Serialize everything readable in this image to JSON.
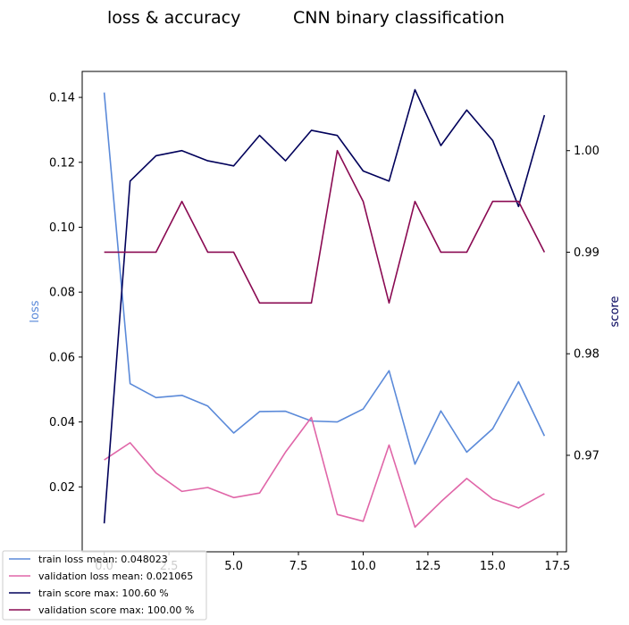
{
  "chart_data": {
    "type": "line",
    "title_left": "loss & accuracy",
    "title_right": "CNN binary classification",
    "xlabel": "",
    "ylabel_left": "loss",
    "ylabel_right": "score",
    "xlim": [
      -0.85,
      17.85
    ],
    "ylim_left": [
      0.0,
      0.148
    ],
    "ylim_right": [
      0.9605,
      1.0078
    ],
    "x_ticks": [
      "0.0",
      "2.5",
      "5.0",
      "7.5",
      "10.0",
      "12.5",
      "15.0",
      "17.5"
    ],
    "x_tick_values": [
      0.0,
      2.5,
      5.0,
      7.5,
      10.0,
      12.5,
      15.0,
      17.5
    ],
    "y_left_ticks": [
      "0.02",
      "0.04",
      "0.06",
      "0.08",
      "0.10",
      "0.12",
      "0.14"
    ],
    "y_left_tick_values": [
      0.02,
      0.04,
      0.06,
      0.08,
      0.1,
      0.12,
      0.14
    ],
    "y_right_ticks": [
      "0.97",
      "0.98",
      "0.99",
      "1.00"
    ],
    "y_right_tick_values": [
      0.97,
      0.98,
      0.99,
      1.0
    ],
    "x": [
      0,
      1,
      2,
      3,
      4,
      5,
      6,
      7,
      8,
      9,
      10,
      11,
      12,
      13,
      14,
      15,
      16,
      17
    ],
    "grid": false,
    "legend_position": "bottom-left",
    "series": [
      {
        "name": "train loss mean: 0.048023",
        "axis": "left",
        "color": "#5b8ad9",
        "values": [
          0.1415,
          0.0518,
          0.0475,
          0.0482,
          0.0449,
          0.0366,
          0.0432,
          0.0433,
          0.0403,
          0.04,
          0.044,
          0.0558,
          0.027,
          0.0434,
          0.0307,
          0.0379,
          0.0524,
          0.0357
        ]
      },
      {
        "name": "validation loss mean: 0.021065",
        "axis": "left",
        "color": "#e066a8",
        "values": [
          0.0283,
          0.0336,
          0.0243,
          0.0186,
          0.0198,
          0.0167,
          0.0181,
          0.0307,
          0.0414,
          0.0115,
          0.0094,
          0.0329,
          0.0076,
          0.0154,
          0.0226,
          0.0163,
          0.0135,
          0.0179
        ]
      },
      {
        "name": "train score max: 100.60 %",
        "axis": "right",
        "color": "#00005a",
        "values": [
          0.9633,
          0.997,
          0.9995,
          1.0,
          0.999,
          0.9985,
          1.0015,
          0.999,
          1.002,
          1.0015,
          0.998,
          0.997,
          1.006,
          1.0005,
          1.004,
          1.001,
          0.9945,
          1.0035
        ]
      },
      {
        "name": "validation score max: 100.00 %",
        "axis": "right",
        "color": "#8a0a52",
        "values": [
          0.99,
          0.99,
          0.99,
          0.995,
          0.99,
          0.99,
          0.985,
          0.985,
          0.985,
          1.0,
          0.995,
          0.985,
          0.995,
          0.99,
          0.99,
          0.995,
          0.995,
          0.99
        ]
      }
    ],
    "colors": {
      "loss_axis_label": "#5b8ad9",
      "score_axis_label": "#00005a"
    }
  }
}
